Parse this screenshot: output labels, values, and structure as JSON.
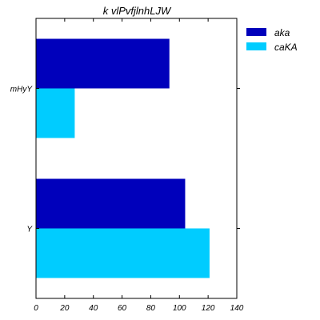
{
  "chart_data": {
    "type": "bar",
    "orientation": "horizontal",
    "title": "k vlPvfjlnhLJW",
    "xlabel": "",
    "ylabel": "",
    "categories": [
      "mHyY",
      "Y"
    ],
    "series": [
      {
        "name": "aka",
        "color": "#0000bb",
        "values": [
          93,
          104
        ]
      },
      {
        "name": "caKA",
        "color": "#00ccff",
        "values": [
          27,
          121
        ]
      }
    ],
    "xlim": [
      0,
      140
    ],
    "xticks": [
      "0",
      "20",
      "40",
      "60",
      "80",
      "100",
      "120",
      "140"
    ],
    "grid": false,
    "legend_position": "outside-right-top"
  }
}
